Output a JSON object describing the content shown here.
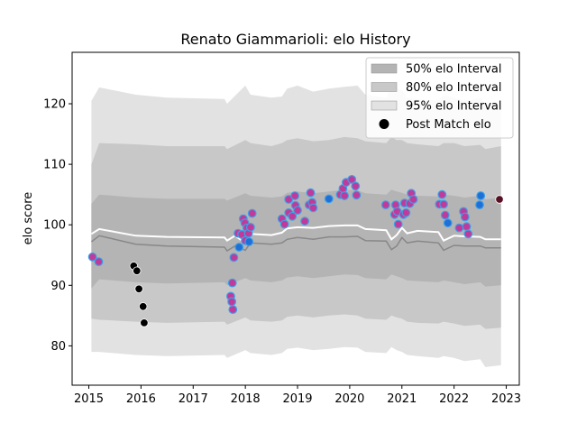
{
  "chart_data": {
    "type": "scatter",
    "title": "Renato Giammarioli: elo History",
    "xlabel": "",
    "ylabel": "elo score",
    "xlim": [
      2014.68,
      2023.25
    ],
    "ylim": [
      73.5,
      128.5
    ],
    "x_ticks": [
      2015,
      2016,
      2017,
      2018,
      2019,
      2020,
      2021,
      2022,
      2023
    ],
    "y_ticks": [
      80,
      90,
      100,
      110,
      120
    ],
    "grid": false,
    "legend_position": "top-right",
    "legend": [
      {
        "label": "50% elo Interval",
        "kind": "band",
        "color": "#b4b4b4"
      },
      {
        "label": "80% elo Interval",
        "kind": "band",
        "color": "#c8c8c8"
      },
      {
        "label": "95% elo Interval",
        "kind": "band",
        "color": "#e2e2e2"
      },
      {
        "label": "Post Match elo",
        "kind": "marker",
        "color": "#000000"
      }
    ],
    "colors": {
      "band50": "#b4b4b4",
      "band80": "#c8c8c8",
      "band95": "#e2e2e2",
      "mean_line": "#ffffff",
      "median_line": "#888888",
      "pink_face": "#c03a9b",
      "blue_face": "#1f6fd6",
      "black_face": "#000000",
      "last_face": "#5a1024",
      "marker_edge": "#3ba0e8"
    },
    "bands": {
      "x": [
        2015.05,
        2015.2,
        2015.9,
        2016.5,
        2017.6,
        2017.65,
        2018.0,
        2018.1,
        2018.5,
        2018.7,
        2018.8,
        2019.0,
        2019.3,
        2019.6,
        2019.9,
        2020.15,
        2020.3,
        2020.7,
        2020.8,
        2020.9,
        2021.0,
        2021.1,
        2021.3,
        2021.7,
        2021.8,
        2022.0,
        2022.2,
        2022.5,
        2022.6,
        2022.9
      ],
      "p95_hi": [
        120.5,
        122.7,
        121.5,
        121.0,
        120.8,
        120.0,
        123.0,
        121.5,
        121.0,
        121.2,
        122.5,
        123.0,
        122.0,
        122.5,
        122.8,
        123.0,
        121.5,
        121.0,
        123.0,
        122.5,
        122.3,
        121.0,
        120.8,
        120.5,
        121.5,
        121.0,
        120.5,
        121.0,
        120.0,
        120.5
      ],
      "p80_hi": [
        110.0,
        113.5,
        113.3,
        113.0,
        113.0,
        112.5,
        114.0,
        113.5,
        113.0,
        113.5,
        114.0,
        114.3,
        113.8,
        114.0,
        114.5,
        114.3,
        113.8,
        113.5,
        114.5,
        114.0,
        114.0,
        113.5,
        113.3,
        113.0,
        113.5,
        113.5,
        113.0,
        113.2,
        112.5,
        113.0
      ],
      "p50_hi": [
        103.5,
        105.0,
        104.5,
        104.3,
        104.3,
        104.0,
        105.2,
        104.8,
        104.5,
        104.7,
        105.3,
        105.5,
        105.2,
        105.5,
        105.8,
        105.7,
        105.2,
        105.0,
        105.8,
        105.5,
        105.3,
        105.0,
        104.8,
        104.7,
        105.0,
        104.8,
        104.5,
        104.8,
        104.2,
        104.5
      ],
      "p50_lo": [
        89.5,
        91.0,
        90.5,
        90.3,
        90.5,
        90.0,
        91.2,
        90.8,
        90.5,
        90.8,
        91.3,
        91.5,
        91.2,
        91.5,
        91.8,
        91.7,
        91.2,
        91.0,
        91.8,
        91.5,
        91.2,
        90.8,
        90.7,
        90.5,
        90.8,
        90.5,
        90.2,
        90.5,
        89.8,
        90.0
      ],
      "p80_lo": [
        84.5,
        84.3,
        84.0,
        83.8,
        84.0,
        83.5,
        84.7,
        84.2,
        84.0,
        84.2,
        84.8,
        85.0,
        84.7,
        85.0,
        85.2,
        85.0,
        84.5,
        84.3,
        85.0,
        84.7,
        84.5,
        84.0,
        83.8,
        83.7,
        84.0,
        83.7,
        83.3,
        83.5,
        82.8,
        83.0
      ],
      "p95_lo": [
        79.0,
        79.0,
        78.5,
        78.3,
        78.5,
        78.0,
        79.3,
        78.8,
        78.5,
        78.8,
        79.5,
        79.7,
        79.3,
        79.5,
        79.8,
        79.7,
        79.0,
        78.8,
        79.8,
        79.3,
        79.0,
        78.5,
        78.3,
        78.0,
        78.3,
        78.0,
        77.5,
        77.8,
        76.5,
        76.8
      ]
    },
    "mean_line": {
      "x": [
        2015.05,
        2015.2,
        2015.9,
        2016.5,
        2017.6,
        2017.65,
        2017.8,
        2018.0,
        2018.1,
        2018.5,
        2018.7,
        2018.8,
        2019.0,
        2019.3,
        2019.6,
        2019.9,
        2020.15,
        2020.3,
        2020.7,
        2020.8,
        2020.9,
        2021.0,
        2021.1,
        2021.3,
        2021.7,
        2021.8,
        2022.0,
        2022.2,
        2022.5,
        2022.6,
        2022.9
      ],
      "y": [
        98.5,
        99.3,
        98.2,
        98.0,
        97.9,
        97.4,
        98.2,
        97.0,
        98.5,
        98.3,
        98.7,
        99.4,
        99.6,
        99.5,
        99.8,
        99.9,
        99.9,
        99.3,
        99.1,
        97.6,
        98.3,
        99.5,
        98.6,
        99.0,
        98.8,
        97.4,
        98.2,
        98.1,
        98.0,
        97.6,
        97.6
      ]
    },
    "median_line": {
      "x": [
        2015.05,
        2015.2,
        2015.9,
        2016.5,
        2017.6,
        2017.65,
        2017.8,
        2018.0,
        2018.1,
        2018.5,
        2018.7,
        2018.8,
        2019.0,
        2019.3,
        2019.6,
        2019.9,
        2020.15,
        2020.3,
        2020.7,
        2020.8,
        2020.9,
        2021.0,
        2021.1,
        2021.3,
        2021.7,
        2021.8,
        2022.0,
        2022.2,
        2022.5,
        2022.6,
        2022.9
      ],
      "y": [
        97.2,
        98.2,
        96.8,
        96.5,
        96.3,
        95.7,
        96.5,
        95.8,
        97.0,
        96.8,
        97.0,
        97.6,
        97.9,
        97.6,
        98.0,
        98.0,
        98.1,
        97.4,
        97.3,
        95.9,
        96.5,
        97.9,
        97.0,
        97.3,
        97.0,
        95.8,
        96.6,
        96.5,
        96.5,
        96.2,
        96.2
      ]
    },
    "series": [
      {
        "name": "",
        "face": "pink",
        "points": [
          [
            2015.07,
            94.7
          ],
          [
            2015.19,
            93.9
          ],
          [
            2017.72,
            88.2
          ],
          [
            2017.74,
            87.3
          ],
          [
            2017.75,
            90.4
          ],
          [
            2017.76,
            86.0
          ],
          [
            2017.78,
            94.6
          ],
          [
            2017.86,
            98.6
          ],
          [
            2017.93,
            98.4
          ],
          [
            2017.96,
            101.0
          ],
          [
            2017.99,
            100.3
          ],
          [
            2018.0,
            97.4
          ],
          [
            2018.03,
            99.5
          ],
          [
            2018.06,
            98.6
          ],
          [
            2018.1,
            99.6
          ],
          [
            2018.13,
            101.9
          ],
          [
            2018.7,
            101.0
          ],
          [
            2018.75,
            100.1
          ],
          [
            2018.83,
            104.2
          ],
          [
            2018.83,
            102.0
          ],
          [
            2018.9,
            101.4
          ],
          [
            2018.95,
            104.8
          ],
          [
            2018.96,
            103.2
          ],
          [
            2019.0,
            102.4
          ],
          [
            2019.14,
            100.6
          ],
          [
            2019.22,
            103.3
          ],
          [
            2019.25,
            105.3
          ],
          [
            2019.28,
            103.7
          ],
          [
            2019.3,
            102.8
          ],
          [
            2019.82,
            105.0
          ],
          [
            2019.87,
            106.0
          ],
          [
            2019.9,
            104.8
          ],
          [
            2019.93,
            107.0
          ],
          [
            2020.04,
            107.5
          ],
          [
            2020.11,
            106.4
          ],
          [
            2020.13,
            104.9
          ],
          [
            2020.69,
            103.3
          ],
          [
            2020.86,
            101.7
          ],
          [
            2020.88,
            103.3
          ],
          [
            2020.91,
            102.2
          ],
          [
            2020.93,
            100.1
          ],
          [
            2021.03,
            101.7
          ],
          [
            2021.05,
            103.6
          ],
          [
            2021.08,
            102.0
          ],
          [
            2021.15,
            103.5
          ],
          [
            2021.18,
            105.2
          ],
          [
            2021.22,
            104.2
          ],
          [
            2021.72,
            103.4
          ],
          [
            2021.77,
            105.0
          ],
          [
            2021.8,
            103.4
          ],
          [
            2021.83,
            101.6
          ],
          [
            2022.1,
            99.5
          ],
          [
            2022.18,
            102.2
          ],
          [
            2022.21,
            101.3
          ],
          [
            2022.24,
            99.7
          ],
          [
            2022.27,
            98.5
          ]
        ]
      },
      {
        "name": "",
        "face": "blue",
        "points": [
          [
            2017.88,
            96.3
          ],
          [
            2018.07,
            97.2
          ],
          [
            2019.6,
            104.3
          ],
          [
            2021.88,
            100.3
          ],
          [
            2022.49,
            103.3
          ],
          [
            2022.51,
            104.8
          ]
        ]
      },
      {
        "name": "",
        "face": "black",
        "points": [
          [
            2015.86,
            93.2
          ],
          [
            2015.92,
            92.4
          ],
          [
            2015.96,
            89.4
          ],
          [
            2016.04,
            86.5
          ],
          [
            2016.06,
            83.8
          ]
        ]
      },
      {
        "name": "",
        "face": "last",
        "points": [
          [
            2022.87,
            104.2
          ]
        ]
      }
    ]
  }
}
